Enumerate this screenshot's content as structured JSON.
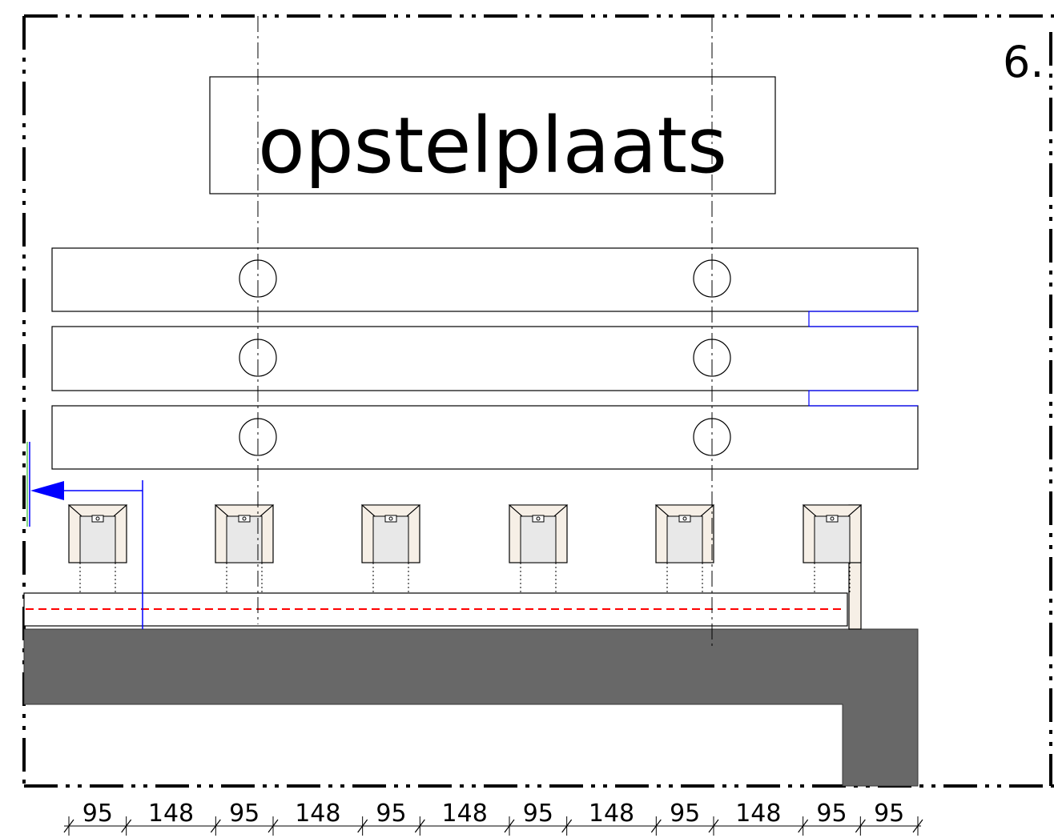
{
  "drawing": {
    "title": "opstelplaats",
    "sheet_number": "6.",
    "dimensions": [
      "95",
      "148",
      "95",
      "148",
      "95",
      "148",
      "95",
      "148",
      "95",
      "148",
      "95",
      "95"
    ]
  },
  "colors": {
    "line": "#000000",
    "cabinet_fill": "#f6efe6",
    "cabinet_inner": "#e8e8e8",
    "concrete": "#686868",
    "section_arrow": "#0000ff",
    "guide_line": "#ff0000"
  },
  "icons": {
    "section_marker": "section-arrow-icon",
    "cabinet": "cabinet-icon"
  }
}
